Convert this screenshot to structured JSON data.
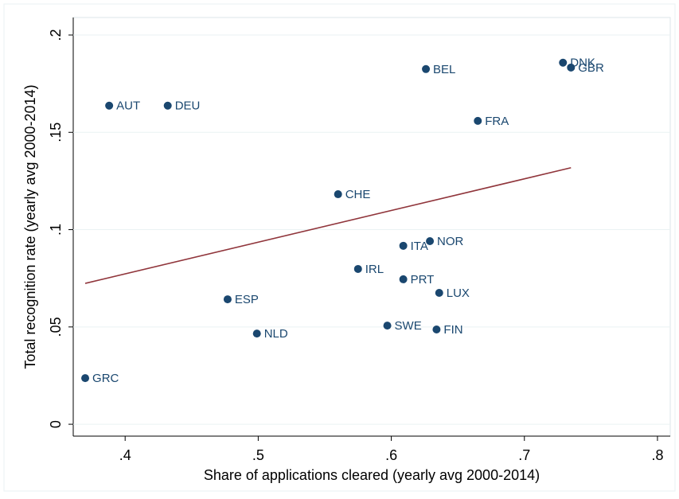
{
  "chart_data": {
    "type": "scatter",
    "x_label": "Share of applications cleared (yearly avg 2000-2014)",
    "y_label": "Total recognition rate (yearly avg 2000-2014)",
    "labels": [
      "GRC",
      "AUT",
      "DEU",
      "ESP",
      "NLD",
      "CHE",
      "IRL",
      "SWE",
      "ITA",
      "PRT",
      "BEL",
      "NOR",
      "FIN",
      "LUX",
      "FRA",
      "DNK",
      "GBR"
    ],
    "x": [
      0.37,
      0.388,
      0.432,
      0.477,
      0.499,
      0.56,
      0.575,
      0.597,
      0.609,
      0.609,
      0.626,
      0.629,
      0.634,
      0.636,
      0.665,
      0.729,
      0.735
    ],
    "y": [
      0.0237,
      0.1637,
      0.1637,
      0.0642,
      0.0466,
      0.1182,
      0.0798,
      0.0507,
      0.0917,
      0.0745,
      0.1825,
      0.0941,
      0.0487,
      0.0675,
      0.1559,
      0.1858,
      0.1833
    ],
    "color": "#1a476f",
    "fit_line": {
      "x": [
        0.37,
        0.735
      ],
      "y": [
        0.0724,
        0.1318
      ],
      "color": "#90353b"
    },
    "xlim": [
      0.361,
      0.8096
    ],
    "ylim": [
      -0.0061,
      0.209
    ],
    "xticks": [
      {
        "value": 0.4,
        "label": ".4"
      },
      {
        "value": 0.5,
        "label": ".5"
      },
      {
        "value": 0.6,
        "label": ".6"
      },
      {
        "value": 0.7,
        "label": ".7"
      },
      {
        "value": 0.8,
        "label": ".8"
      }
    ],
    "yticks": [
      0,
      {
        "value": 0.05,
        "label": ".05"
      },
      {
        "value": 0.1,
        "label": ".1"
      },
      {
        "value": 0.15,
        "label": ".15"
      },
      {
        "value": 0.2,
        "label": ".2"
      }
    ],
    "grid": true
  }
}
